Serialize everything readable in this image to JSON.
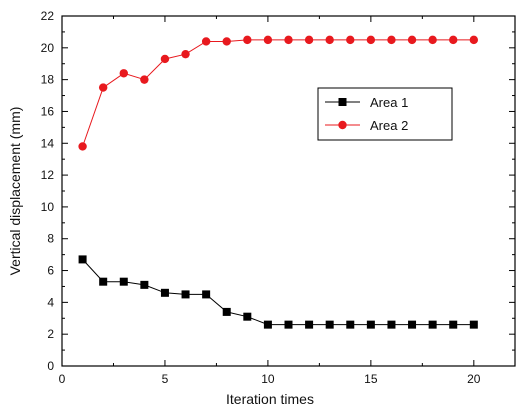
{
  "chart_data": {
    "type": "line",
    "xlabel": "Iteration times",
    "ylabel": "Vertical displacement (mm)",
    "xlim": [
      0,
      22
    ],
    "ylim": [
      0,
      22
    ],
    "xticks": [
      0,
      5,
      10,
      15,
      20
    ],
    "yticks": [
      0,
      2,
      4,
      6,
      8,
      10,
      12,
      14,
      16,
      18,
      20,
      22
    ],
    "grid": false,
    "legend_position": "upper-right",
    "x": [
      1,
      2,
      3,
      4,
      5,
      6,
      7,
      8,
      9,
      10,
      11,
      12,
      13,
      14,
      15,
      16,
      17,
      18,
      19,
      20
    ],
    "series": [
      {
        "name": "Area 1",
        "color": "#000000",
        "marker": "square",
        "values": [
          6.7,
          5.3,
          5.3,
          5.1,
          4.6,
          4.5,
          4.5,
          3.4,
          3.1,
          2.6,
          2.6,
          2.6,
          2.6,
          2.6,
          2.6,
          2.6,
          2.6,
          2.6,
          2.6,
          2.6
        ]
      },
      {
        "name": "Area 2",
        "color": "#e8191e",
        "marker": "circle",
        "values": [
          13.8,
          17.5,
          18.4,
          18.0,
          19.3,
          19.6,
          20.4,
          20.4,
          20.5,
          20.5,
          20.5,
          20.5,
          20.5,
          20.5,
          20.5,
          20.5,
          20.5,
          20.5,
          20.5,
          20.5
        ]
      }
    ]
  }
}
